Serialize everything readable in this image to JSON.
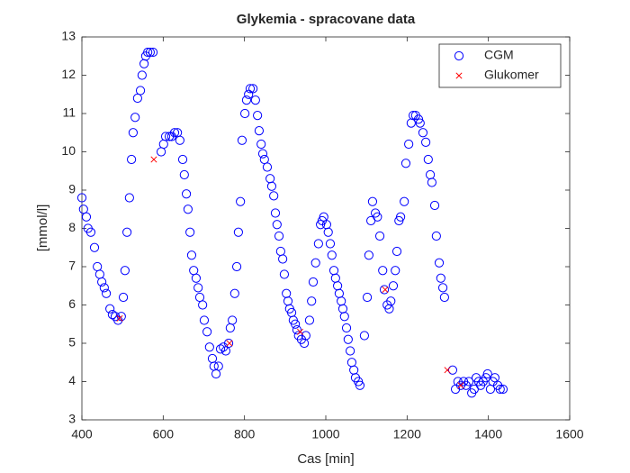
{
  "chart_data": {
    "type": "scatter",
    "title": "Glykemia - spracovane data",
    "xlabel": "Cas [min]",
    "ylabel": "[mmol/l]",
    "xlim": [
      400,
      1600
    ],
    "xticks": [
      400,
      600,
      800,
      1000,
      1200,
      1400,
      1600
    ],
    "ylim": [
      3,
      13
    ],
    "yticks": [
      3,
      4,
      5,
      6,
      7,
      8,
      9,
      10,
      11,
      12,
      13
    ],
    "grid": false,
    "legend": "northeast",
    "series": [
      {
        "name": "CGM",
        "color": "#0000ff",
        "marker": "o",
        "x": [
          400,
          404,
          411,
          415,
          422,
          431,
          438,
          444,
          449,
          455,
          460,
          469,
          475,
          482,
          489,
          497,
          502,
          506,
          511,
          517,
          522,
          526,
          531,
          537,
          544,
          548,
          553,
          557,
          562,
          568,
          575,
          595,
          601,
          606,
          615,
          621,
          628,
          635,
          641,
          648,
          652,
          657,
          661,
          666,
          670,
          675,
          681,
          686,
          690,
          697,
          701,
          708,
          714,
          721,
          725,
          730,
          736,
          741,
          748,
          754,
          761,
          765,
          770,
          776,
          781,
          785,
          790,
          794,
          801,
          805,
          810,
          814,
          821,
          827,
          832,
          836,
          841,
          845,
          849,
          856,
          863,
          867,
          872,
          876,
          880,
          885,
          889,
          894,
          898,
          903,
          907,
          911,
          916,
          920,
          925,
          929,
          933,
          940,
          947,
          951,
          960,
          965,
          969,
          975,
          982,
          987,
          991,
          995,
          1002,
          1006,
          1011,
          1015,
          1020,
          1024,
          1029,
          1033,
          1038,
          1042,
          1046,
          1051,
          1055,
          1060,
          1064,
          1069,
          1073,
          1080,
          1084,
          1095,
          1102,
          1106,
          1111,
          1115,
          1122,
          1127,
          1133,
          1140,
          1144,
          1151,
          1156,
          1160,
          1166,
          1171,
          1175,
          1180,
          1184,
          1193,
          1197,
          1204,
          1210,
          1215,
          1221,
          1228,
          1232,
          1239,
          1246,
          1252,
          1257,
          1261,
          1268,
          1272,
          1279,
          1283,
          1288,
          1292,
          1312,
          1319,
          1325,
          1332,
          1339,
          1345,
          1352,
          1359,
          1365,
          1370,
          1376,
          1381,
          1387,
          1394,
          1398,
          1405,
          1411,
          1416,
          1423,
          1429,
          1436
        ],
        "values": [
          8.8,
          8.5,
          8.3,
          8.0,
          7.9,
          7.5,
          7.0,
          6.8,
          6.6,
          6.45,
          6.3,
          5.9,
          5.75,
          5.7,
          5.6,
          5.7,
          6.2,
          6.9,
          7.9,
          8.8,
          9.8,
          10.5,
          10.9,
          11.4,
          11.6,
          12.0,
          12.3,
          12.5,
          12.6,
          12.6,
          12.6,
          10.0,
          10.2,
          10.4,
          10.4,
          10.4,
          10.5,
          10.5,
          10.3,
          9.8,
          9.4,
          8.9,
          8.5,
          7.9,
          7.3,
          6.9,
          6.7,
          6.45,
          6.2,
          6.0,
          5.6,
          5.3,
          4.9,
          4.6,
          4.4,
          4.2,
          4.4,
          4.85,
          4.9,
          4.8,
          5.0,
          5.4,
          5.6,
          6.3,
          7.0,
          7.9,
          8.7,
          10.3,
          11.0,
          11.35,
          11.5,
          11.65,
          11.65,
          11.35,
          10.95,
          10.55,
          10.2,
          9.95,
          9.8,
          9.6,
          9.3,
          9.1,
          8.85,
          8.4,
          8.1,
          7.8,
          7.4,
          7.2,
          6.8,
          6.3,
          6.1,
          5.9,
          5.8,
          5.6,
          5.5,
          5.35,
          5.2,
          5.1,
          5.0,
          5.2,
          5.6,
          6.1,
          6.6,
          7.1,
          7.6,
          8.1,
          8.2,
          8.3,
          8.1,
          7.9,
          7.6,
          7.3,
          6.9,
          6.7,
          6.5,
          6.3,
          6.1,
          5.9,
          5.7,
          5.4,
          5.1,
          4.8,
          4.5,
          4.3,
          4.1,
          4.0,
          3.9,
          5.2,
          6.2,
          7.3,
          8.2,
          8.7,
          8.4,
          8.3,
          7.8,
          6.9,
          6.4,
          6.0,
          5.9,
          6.1,
          6.5,
          6.9,
          7.4,
          8.2,
          8.3,
          8.7,
          9.7,
          10.2,
          10.75,
          10.95,
          10.95,
          10.85,
          10.75,
          10.5,
          10.25,
          9.8,
          9.4,
          9.2,
          8.6,
          7.8,
          7.1,
          6.7,
          6.45,
          6.2,
          4.3,
          3.8,
          4.0,
          3.9,
          4.0,
          3.9,
          4.0,
          3.7,
          3.8,
          4.1,
          4.0,
          3.9,
          4.0,
          4.1,
          4.2,
          3.8,
          4.0,
          4.1,
          3.9,
          3.8,
          3.8
        ]
      },
      {
        "name": "Glukomer",
        "color": "#ff0000",
        "marker": "x",
        "x": [
          493,
          577,
          763,
          937,
          1146,
          1299,
          1332
        ],
        "values": [
          5.65,
          9.8,
          5.0,
          5.3,
          6.4,
          4.3,
          3.9
        ]
      }
    ]
  }
}
